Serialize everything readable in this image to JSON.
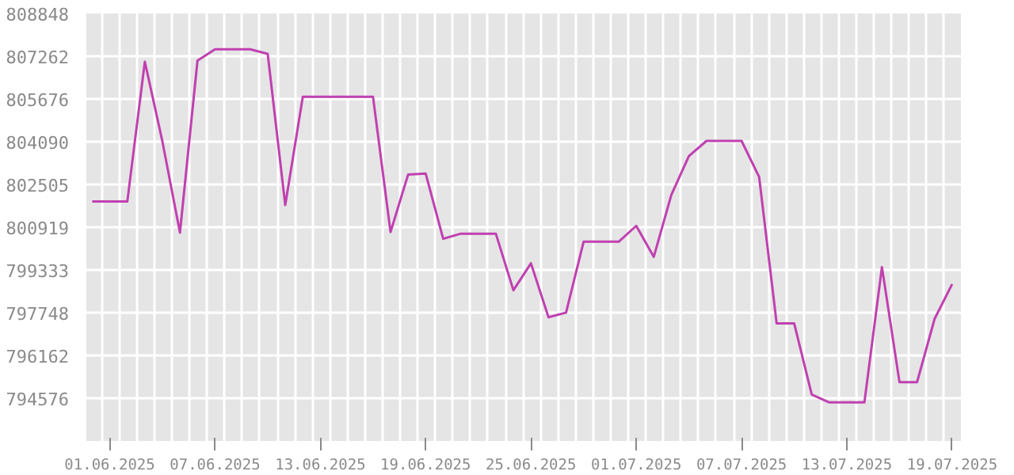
{
  "chart_data": {
    "type": "line",
    "x": [
      "2025-05-31",
      "2025-06-01",
      "2025-06-02",
      "2025-06-03",
      "2025-06-04",
      "2025-06-05",
      "2025-06-06",
      "2025-06-07",
      "2025-06-08",
      "2025-06-09",
      "2025-06-10",
      "2025-06-11",
      "2025-06-12",
      "2025-06-13",
      "2025-06-14",
      "2025-06-15",
      "2025-06-16",
      "2025-06-17",
      "2025-06-18",
      "2025-06-19",
      "2025-06-20",
      "2025-06-21",
      "2025-06-22",
      "2025-06-23",
      "2025-06-24",
      "2025-06-25",
      "2025-06-26",
      "2025-06-27",
      "2025-06-28",
      "2025-06-29",
      "2025-06-30",
      "2025-07-01",
      "2025-07-02",
      "2025-07-03",
      "2025-07-04",
      "2025-07-05",
      "2025-07-06",
      "2025-07-07",
      "2025-07-08",
      "2025-07-09",
      "2025-07-10",
      "2025-07-11",
      "2025-07-12",
      "2025-07-13",
      "2025-07-14",
      "2025-07-15",
      "2025-07-16",
      "2025-07-17",
      "2025-07-18",
      "2025-07-19"
    ],
    "series": [
      {
        "color": "#c040b0",
        "values": [
          801870,
          801870,
          801870,
          807060,
          804100,
          800720,
          807100,
          807520,
          807520,
          807520,
          807350,
          801740,
          805760,
          805760,
          805760,
          805760,
          805760,
          800740,
          802870,
          802910,
          800490,
          800680,
          800680,
          800680,
          798580,
          799580,
          797580,
          797750,
          800380,
          800380,
          800380,
          800970,
          799820,
          802120,
          803560,
          804120,
          804120,
          804120,
          802790,
          797350,
          797350,
          794710,
          794420,
          794420,
          794420,
          799440,
          795170,
          795170,
          797520,
          798810
        ]
      }
    ],
    "xlim": [
      "2025-05-30T16:00",
      "2025-07-19T12:00"
    ],
    "xticks": [
      {
        "value": "2025-06-01",
        "label": "01.06.2025"
      },
      {
        "value": "2025-06-07",
        "label": "07.06.2025"
      },
      {
        "value": "2025-06-13",
        "label": "13.06.2025"
      },
      {
        "value": "2025-06-19",
        "label": "19.06.2025"
      },
      {
        "value": "2025-06-25",
        "label": "25.06.2025"
      },
      {
        "value": "2025-07-01",
        "label": "01.07.2025"
      },
      {
        "value": "2025-07-07",
        "label": "07.07.2025"
      },
      {
        "value": "2025-07-13",
        "label": "13.07.2025"
      },
      {
        "value": "2025-07-19",
        "label": "19.07.2025"
      }
    ],
    "ylim": [
      792990,
      808848
    ],
    "yticks": [
      794576,
      796162,
      797748,
      799333,
      800919,
      802505,
      804090,
      805676,
      807262,
      808848
    ],
    "grid": true,
    "marker": "none",
    "line_style": "solid"
  }
}
